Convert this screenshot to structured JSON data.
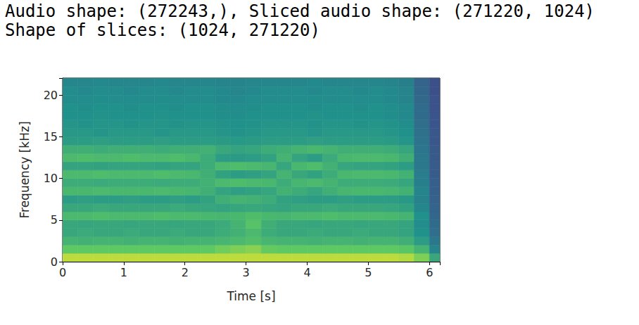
{
  "text_output": [
    "Audio shape: (272243,), Sliced audio shape: (271220, 1024)",
    "Shape of slices: (1024, 271220)"
  ],
  "chart_data": {
    "type": "heatmap",
    "x_label": "Time [s]",
    "y_label": "Frequency [kHz]",
    "xlim": [
      0,
      6.17
    ],
    "xticks": [
      0,
      1,
      2,
      3,
      4,
      5,
      6
    ],
    "ylim": [
      0,
      22.05
    ],
    "yticks": [
      0,
      5,
      10,
      15,
      20
    ],
    "grid": false,
    "time_bins": [
      0,
      0.25,
      0.5,
      0.75,
      1,
      1.25,
      1.5,
      1.75,
      2,
      2.25,
      2.5,
      2.75,
      3,
      3.25,
      3.5,
      3.75,
      4,
      4.25,
      4.5,
      4.75,
      5,
      5.25,
      5.5,
      5.75,
      6,
      6.17
    ],
    "frequency_bins": [
      0,
      1,
      2,
      3,
      4,
      5,
      6,
      7,
      8,
      9,
      10,
      11,
      12,
      13,
      14,
      15,
      16,
      17,
      18,
      19,
      20,
      21,
      22.05
    ],
    "color_range": [
      0,
      10
    ],
    "cells": [
      [
        9,
        9,
        9,
        9,
        9,
        9,
        9,
        9,
        9,
        9,
        9,
        9,
        9,
        9,
        9,
        9,
        9,
        9,
        9,
        9,
        9,
        9,
        8.8,
        8,
        6
      ],
      [
        7.5,
        7.5,
        7.5,
        7.5,
        7.5,
        7.5,
        7.5,
        7.5,
        7.5,
        7.5,
        7.8,
        8,
        8.2,
        7.6,
        7.5,
        7.5,
        7.5,
        7.5,
        7.5,
        7.5,
        7.5,
        7.5,
        7.3,
        6.5,
        4.5
      ],
      [
        6.5,
        6.4,
        6.5,
        6.5,
        6.4,
        6.5,
        6.5,
        6.4,
        6.5,
        6.5,
        6.6,
        6.8,
        7,
        6.6,
        6.5,
        6.5,
        6.4,
        6.5,
        6.5,
        6.4,
        6.5,
        6.5,
        6.3,
        5.5,
        4
      ],
      [
        6,
        6.1,
        6,
        6,
        6.1,
        6,
        6,
        6.1,
        6,
        6,
        6.2,
        6.4,
        6.8,
        6.2,
        6,
        6,
        6.1,
        6,
        6,
        6.1,
        6,
        6,
        5.8,
        5,
        3.6
      ],
      [
        6,
        5.9,
        6,
        6,
        5.9,
        6,
        6,
        5.9,
        6,
        6,
        6.1,
        6.5,
        7.2,
        6.3,
        6,
        6,
        5.9,
        6,
        6,
        5.9,
        6,
        6,
        5.8,
        4.8,
        3.5
      ],
      [
        6.8,
        6.8,
        6.9,
        6.8,
        6.8,
        6.8,
        6.9,
        6.8,
        6.8,
        6.7,
        6.6,
        6.7,
        6.9,
        6.7,
        6.6,
        6.8,
        6.8,
        6.9,
        6.8,
        6.8,
        6.8,
        6.7,
        6.5,
        5,
        3.3
      ],
      [
        6,
        6,
        6.1,
        6,
        6,
        6,
        6,
        6.1,
        6,
        5.9,
        5.8,
        5.9,
        6,
        5.9,
        5.8,
        6,
        6,
        6.1,
        6,
        6,
        6,
        5.9,
        5.7,
        4.6,
        3.2
      ],
      [
        5.5,
        5.6,
        5.5,
        5.5,
        5.6,
        5.5,
        5.5,
        5.6,
        5.5,
        5.7,
        6.3,
        6.5,
        6.4,
        6.2,
        5.7,
        5.6,
        5.5,
        5.5,
        5.6,
        5.5,
        5.5,
        5.5,
        5.3,
        4.4,
        3.1
      ],
      [
        6.7,
        6.7,
        6.8,
        6.7,
        6.7,
        6.7,
        6.8,
        6.7,
        6.6,
        6.3,
        5.8,
        5.6,
        5.7,
        5.9,
        6.4,
        6.2,
        5.9,
        6.3,
        6.6,
        6.7,
        6.7,
        6.6,
        6.4,
        4.5,
        3
      ],
      [
        6.2,
        6.2,
        6.1,
        6.2,
        6.2,
        6.2,
        6.1,
        6.2,
        6.2,
        6.4,
        6.8,
        6.9,
        6.8,
        6.7,
        6.2,
        6.6,
        6.8,
        6.5,
        6.2,
        6.2,
        6.2,
        6.1,
        5.9,
        4.3,
        3
      ],
      [
        6.8,
        6.8,
        6.9,
        6.8,
        6.8,
        6.8,
        6.9,
        6.8,
        6.7,
        6.3,
        5.7,
        5.5,
        5.6,
        5.8,
        6.5,
        6,
        5.7,
        6.2,
        6.7,
        6.8,
        6.8,
        6.7,
        6.4,
        4.2,
        2.9
      ],
      [
        5.8,
        5.8,
        5.7,
        5.8,
        5.8,
        5.8,
        5.7,
        5.8,
        5.8,
        6.2,
        6.8,
        6.9,
        6.8,
        6.6,
        5.9,
        6.7,
        6.9,
        6.4,
        5.9,
        5.8,
        5.8,
        5.7,
        5.5,
        4,
        2.9
      ],
      [
        6.8,
        6.9,
        6.8,
        6.8,
        6.9,
        6.8,
        6.8,
        6.9,
        6.7,
        6.2,
        5.5,
        5.4,
        5.5,
        5.7,
        6.5,
        5.8,
        5.5,
        6.1,
        6.7,
        6.8,
        6.8,
        6.7,
        6.3,
        4,
        2.8
      ],
      [
        6.3,
        6.3,
        6.2,
        6.3,
        6.3,
        6.3,
        6.2,
        6.3,
        6.3,
        6.4,
        6,
        5.8,
        5.9,
        6.2,
        6.3,
        6.5,
        6.7,
        6.5,
        6.3,
        6.3,
        6.3,
        6.2,
        5.9,
        3.9,
        2.8
      ],
      [
        5.5,
        5.5,
        5.6,
        5.5,
        5.5,
        5.5,
        5.6,
        5.5,
        5.5,
        5.5,
        5.4,
        5.3,
        5.4,
        5.5,
        5.5,
        5.5,
        5.6,
        5.5,
        5.5,
        5.5,
        5.5,
        5.4,
        5.2,
        3.8,
        2.7
      ],
      [
        5.3,
        5.3,
        5.2,
        5.3,
        5.3,
        5.3,
        5.2,
        5.3,
        5.3,
        5.3,
        5.2,
        5.1,
        5.2,
        5.3,
        5.3,
        5.3,
        5.2,
        5.3,
        5.3,
        5.3,
        5.3,
        5.2,
        5,
        3.7,
        2.7
      ],
      [
        5.2,
        5.1,
        5.2,
        5.2,
        5.1,
        5.2,
        5.2,
        5.1,
        5.2,
        5.2,
        5.1,
        5,
        5.1,
        5.2,
        5.2,
        5.2,
        5.1,
        5.2,
        5.2,
        5.1,
        5.2,
        5.1,
        4.9,
        3.6,
        2.6
      ],
      [
        5,
        5,
        5.1,
        5,
        5,
        5,
        5.1,
        5,
        5,
        5,
        4.9,
        4.9,
        5,
        5,
        5,
        5,
        5.1,
        5,
        5,
        5,
        5,
        4.9,
        4.7,
        3.5,
        2.6
      ],
      [
        5,
        4.9,
        5,
        5,
        4.9,
        5,
        5,
        4.9,
        5,
        5,
        4.9,
        4.8,
        4.9,
        5,
        5,
        5,
        4.9,
        5,
        5,
        4.9,
        5,
        4.9,
        4.7,
        3.5,
        2.5
      ],
      [
        4.8,
        4.8,
        4.9,
        4.8,
        4.8,
        4.8,
        4.9,
        4.8,
        4.8,
        4.8,
        4.7,
        4.7,
        4.8,
        4.8,
        4.8,
        4.8,
        4.9,
        4.8,
        4.8,
        4.8,
        4.8,
        4.7,
        4.5,
        3.4,
        2.5
      ],
      [
        4.8,
        4.7,
        4.8,
        4.8,
        4.7,
        4.8,
        4.8,
        4.7,
        4.8,
        4.8,
        4.7,
        4.6,
        4.7,
        4.8,
        4.8,
        4.8,
        4.7,
        4.8,
        4.8,
        4.7,
        4.8,
        4.7,
        4.5,
        3.3,
        2.4
      ],
      [
        4.6,
        4.6,
        4.7,
        4.6,
        4.6,
        4.6,
        4.7,
        4.6,
        4.6,
        4.6,
        4.5,
        4.5,
        4.6,
        4.6,
        4.6,
        4.6,
        4.7,
        4.6,
        4.6,
        4.6,
        4.6,
        4.5,
        4.3,
        3.2,
        2.4
      ]
    ]
  }
}
